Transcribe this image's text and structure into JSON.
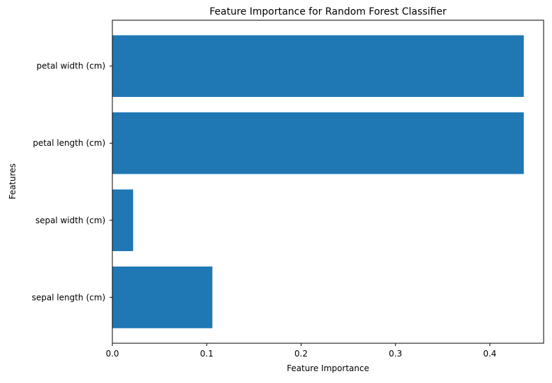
{
  "chart_data": {
    "type": "bar",
    "orientation": "horizontal",
    "title": "Feature Importance for Random Forest Classifier",
    "xlabel": "Feature Importance",
    "ylabel": "Features",
    "categories": [
      "sepal length (cm)",
      "sepal width (cm)",
      "petal length (cm)",
      "petal width (cm)"
    ],
    "values": [
      0.106,
      0.022,
      0.436,
      0.436
    ],
    "xlim": [
      0,
      0.457
    ],
    "xticks": [
      0.0,
      0.1,
      0.2,
      0.3,
      0.4
    ],
    "xtick_labels": [
      "0.0",
      "0.1",
      "0.2",
      "0.3",
      "0.4"
    ],
    "grid": false,
    "bar_color": "#1f77b4"
  }
}
